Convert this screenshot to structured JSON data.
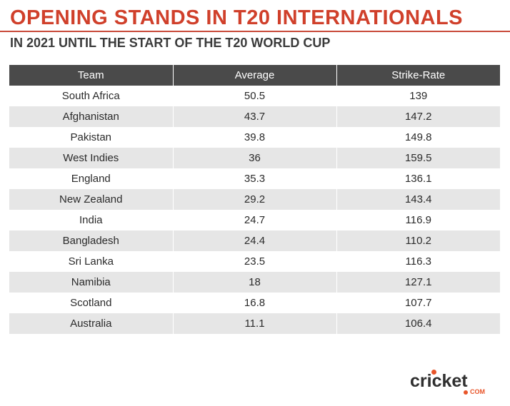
{
  "title": "OPENING STANDS IN T20 INTERNATIONALS",
  "subtitle": "IN 2021 UNTIL THE START OF THE T20 WORLD CUP",
  "chart_data": {
    "type": "table",
    "columns": [
      "Team",
      "Average",
      "Strike-Rate"
    ],
    "rows": [
      [
        "South Africa",
        "50.5",
        "139"
      ],
      [
        "Afghanistan",
        "43.7",
        "147.2"
      ],
      [
        "Pakistan",
        "39.8",
        "149.8"
      ],
      [
        "West Indies",
        "36",
        "159.5"
      ],
      [
        "England",
        "35.3",
        "136.1"
      ],
      [
        "New Zealand",
        "29.2",
        "143.4"
      ],
      [
        "India",
        "24.7",
        "116.9"
      ],
      [
        "Bangladesh",
        "24.4",
        "110.2"
      ],
      [
        "Sri Lanka",
        "23.5",
        "116.3"
      ],
      [
        "Namibia",
        "18",
        "127.1"
      ],
      [
        "Scotland",
        "16.8",
        "107.7"
      ],
      [
        "Australia",
        "11.1",
        "106.4"
      ]
    ]
  },
  "logo": {
    "word": "cricket",
    "suffix": "COM",
    "accent_color": "#e8552a"
  },
  "colors": {
    "title": "#d0402b",
    "header_bg": "#4a4a4a",
    "stripe": "#e6e6e6"
  }
}
